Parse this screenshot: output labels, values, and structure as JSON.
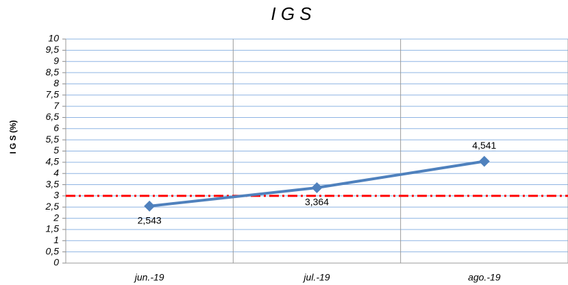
{
  "chart_data": {
    "type": "line",
    "title": "I G S",
    "y_label": "I G S (%)",
    "categories": [
      "jun.-19",
      "jul.-19",
      "ago.-19"
    ],
    "series": [
      {
        "name": "I G S",
        "color": "#4f81bd",
        "values": [
          2.543,
          3.364,
          4.541
        ],
        "value_labels": [
          "2,543",
          "3,364",
          "4,541"
        ]
      }
    ],
    "reference_line": {
      "value": 3,
      "color": "#ff0000"
    },
    "ylim": [
      0,
      10
    ],
    "yticks": [
      0,
      {
        "value": 0.5,
        "label": "0,5"
      },
      1,
      {
        "value": 1.5,
        "label": "1,5"
      },
      2,
      {
        "value": 2.5,
        "label": "2,5"
      },
      3,
      {
        "value": 3.5,
        "label": "3,5"
      },
      4,
      {
        "value": 4.5,
        "label": "4,5"
      },
      5,
      {
        "value": 5.5,
        "label": "5,5"
      },
      6,
      {
        "value": 6.5,
        "label": "6,5"
      },
      7,
      {
        "value": 7.5,
        "label": "7,5"
      },
      8,
      {
        "value": 8.5,
        "label": "8,5"
      },
      9,
      {
        "value": 9.5,
        "label": "9,5"
      },
      10
    ],
    "grid": true
  }
}
